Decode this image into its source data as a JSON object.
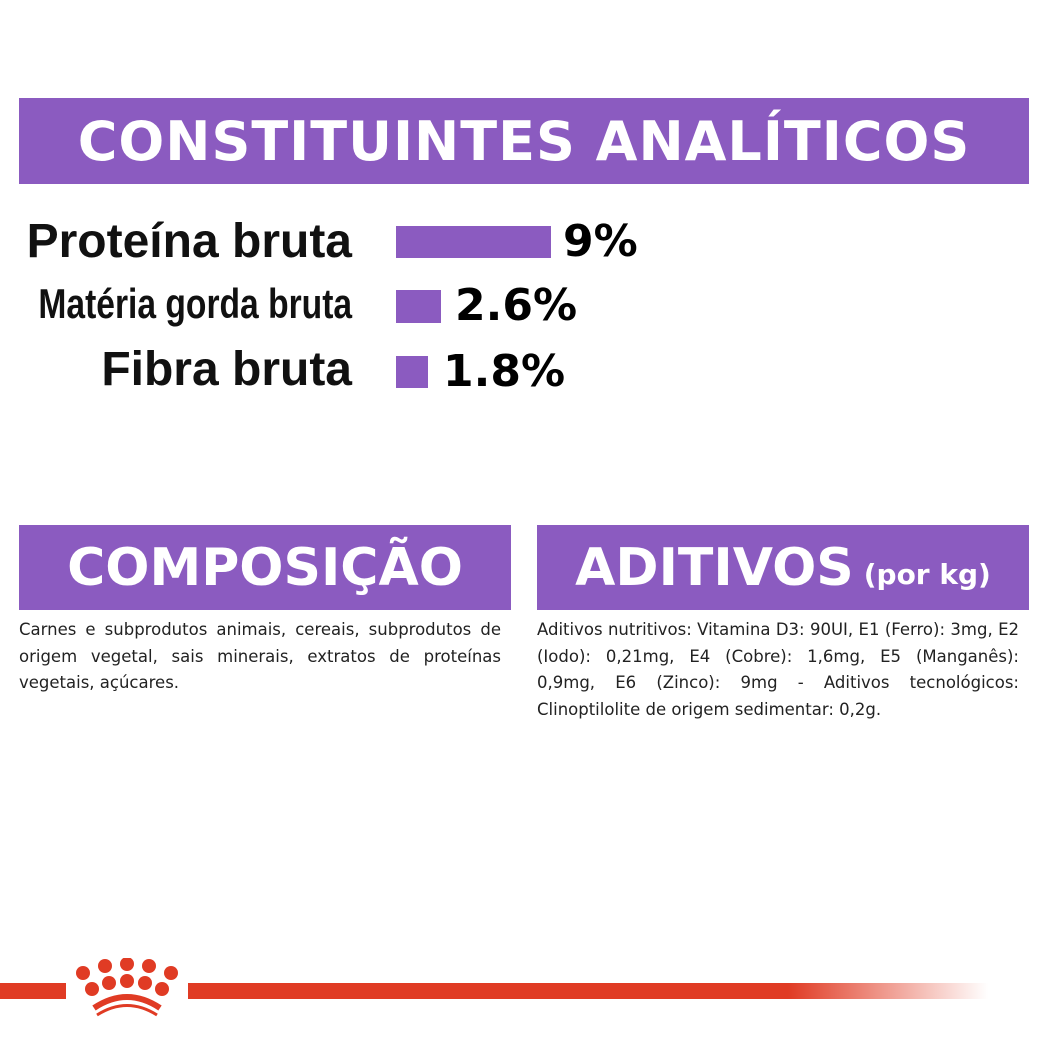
{
  "analytics": {
    "title": "CONSTITUINTES ANALÍTICOS",
    "rows": [
      {
        "label": "Proteína bruta",
        "value": "9%",
        "percent": 9
      },
      {
        "label": "Matéria gorda bruta",
        "value": "2.6%",
        "percent": 2.6
      },
      {
        "label": "Fibra bruta",
        "value": "1.8%",
        "percent": 1.8
      }
    ]
  },
  "composition": {
    "title": "COMPOSIÇÃO",
    "text": "Carnes e subprodutos animais, cereais, subprodutos de origem vegetal, sais minerais, extratos de proteínas vegetais, açúcares."
  },
  "additives": {
    "title": "ADITIVOS",
    "unit": "(por kg)",
    "text": "Aditivos nutritivos: Vitamina D3: 90UI, E1 (Ferro): 3mg, E2 (Iodo): 0,21mg, E4 (Cobre): 1,6mg, E5 (Manganês): 0,9mg, E6 (Zinco): 9mg - Aditivos tecnológicos: Clinoptilolite de origem sedimentar: 0,2g."
  },
  "colors": {
    "accent": "#8b5bc0",
    "brand_red": "#e03b24"
  },
  "logo": {
    "icon": "royal-canin-crown-icon"
  }
}
